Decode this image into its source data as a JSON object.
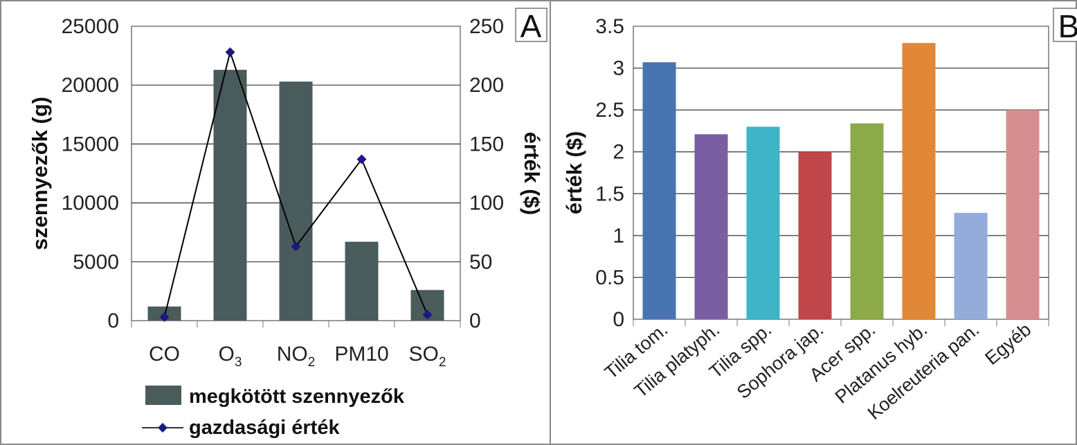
{
  "chart_data": [
    {
      "type": "bar",
      "panel_label": "A",
      "categories": [
        {
          "base": "CO",
          "sub": ""
        },
        {
          "base": "O",
          "sub": "3"
        },
        {
          "base": "NO",
          "sub": "2"
        },
        {
          "base": "PM10",
          "sub": ""
        },
        {
          "base": "SO",
          "sub": "2"
        }
      ],
      "series": [
        {
          "name": "megkötött szennyezők",
          "kind": "bar",
          "axis": "left",
          "color": "#4a5b5b",
          "values": [
            1200,
            21300,
            20300,
            6700,
            2600
          ]
        },
        {
          "name": "gazdasági érték",
          "kind": "line",
          "axis": "right",
          "color": "#000000",
          "marker_color": "#1a1a80",
          "values": [
            3,
            228,
            63,
            137,
            5
          ]
        }
      ],
      "ylabel": "szennyezők (g)",
      "y2label": "érték ($)",
      "ylim": [
        0,
        25000
      ],
      "yticks": [
        "0",
        "5000",
        "10000",
        "15000",
        "20000",
        "25000"
      ],
      "y2lim": [
        0,
        250
      ],
      "y2ticks": [
        "0",
        "50",
        "100",
        "150",
        "200",
        "250"
      ],
      "grid": true,
      "legend_position": "bottom",
      "legend": [
        "megkötött szennyezők",
        "gazdasági érték"
      ]
    },
    {
      "type": "bar",
      "panel_label": "B",
      "categories": [
        "Tilia tom.",
        "Tilia platyph.",
        "Tilia spp.",
        "Sophora jap.",
        "Acer spp.",
        "Platanus hyb.",
        "Koelreuteria pan.",
        "Egyéb"
      ],
      "values": [
        3.07,
        2.21,
        2.3,
        2.0,
        2.34,
        3.3,
        1.27,
        2.5
      ],
      "colors": [
        "#4774b1",
        "#7a5ea3",
        "#3fb3c8",
        "#c0464a",
        "#8daa4b",
        "#e08838",
        "#93acd9",
        "#d78e90"
      ],
      "ylabel": "érték ($)",
      "ylim": [
        0,
        3.5
      ],
      "yticks": [
        "0",
        "0.5",
        "1",
        "1.5",
        "2",
        "2.5",
        "3",
        "3.5"
      ],
      "grid": true
    }
  ]
}
